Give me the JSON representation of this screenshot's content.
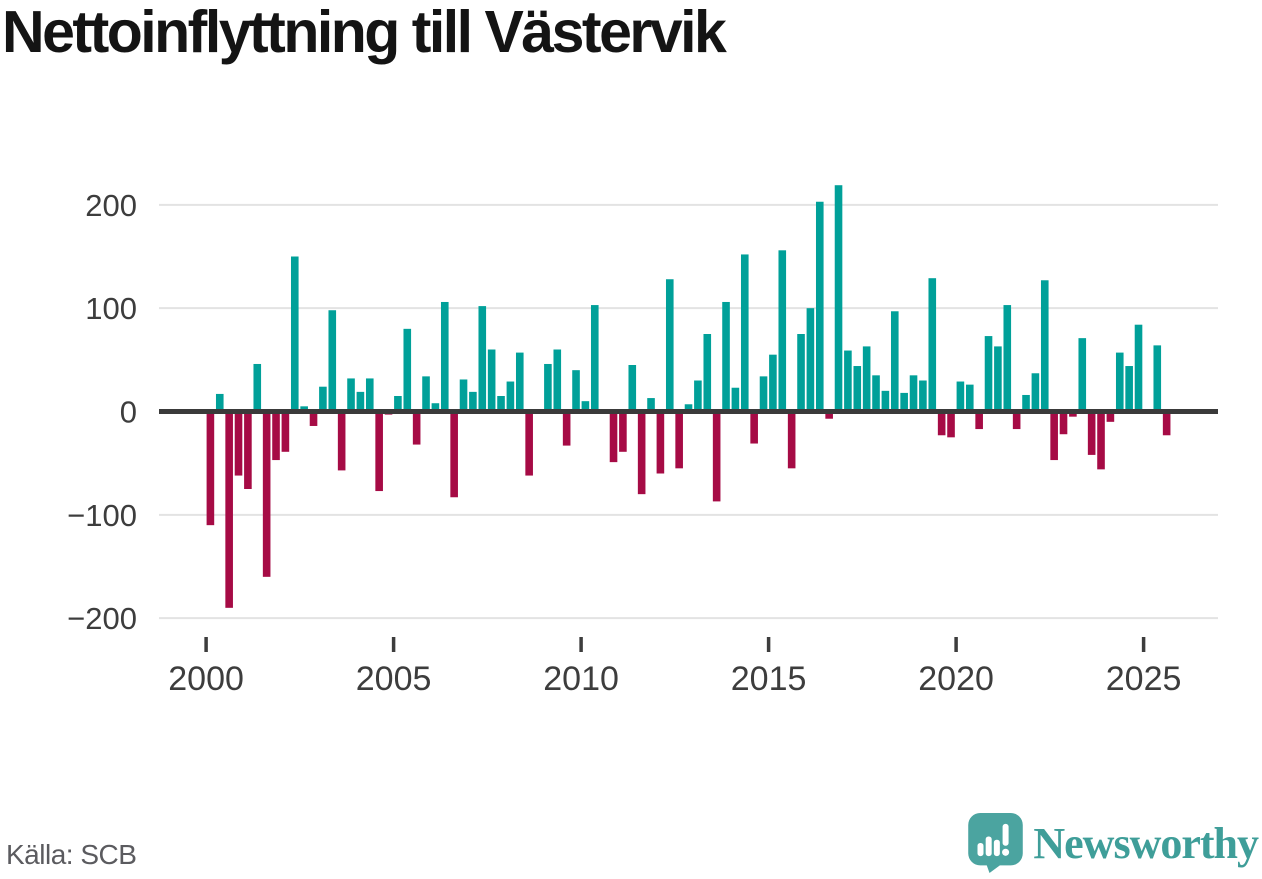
{
  "title": "Nettoinflyttning till Västervik",
  "source": "Källa: SCB",
  "logo": {
    "name": "Newsworthy",
    "icon": "bar-chart-pin-icon"
  },
  "colors": {
    "positive_bar": "#00a099",
    "negative_bar": "#a60b45",
    "gridline": "#e3e3e3",
    "zero_line": "#3a3a3a",
    "axis_text": "#3d3d3d",
    "source_text": "#5b5b5f",
    "logo_teal": "#4ba4a0",
    "logo_text_teal": "#3f9e99",
    "title_text": "#141414"
  },
  "chart_data": {
    "type": "bar",
    "title": "Nettoinflyttning till Västervik",
    "frequency": "quarterly",
    "start": "2000Q1",
    "end": "2025Q3",
    "xlabel": "",
    "ylabel": "",
    "grid": "horizontal",
    "legend": "none",
    "ylim": [
      -220,
      235
    ],
    "yticks": [
      -200,
      -100,
      0,
      100,
      200
    ],
    "xticks": [
      2000,
      2005,
      2010,
      2015,
      2020,
      2025
    ],
    "values": [
      -110,
      17,
      -190,
      -62,
      -75,
      46,
      -160,
      -47,
      -39,
      150,
      5,
      -14,
      24,
      98,
      -57,
      32,
      19,
      32,
      -77,
      -3,
      15,
      80,
      -32,
      34,
      8,
      106,
      -83,
      31,
      19,
      102,
      60,
      15,
      29,
      57,
      -62,
      0,
      46,
      60,
      -33,
      40,
      10,
      103,
      0,
      -49,
      -39,
      45,
      -80,
      13,
      -60,
      128,
      -55,
      7,
      30,
      75,
      -87,
      106,
      23,
      152,
      -31,
      34,
      55,
      156,
      -55,
      75,
      100,
      203,
      -7,
      219,
      59,
      44,
      63,
      35,
      20,
      97,
      18,
      35,
      30,
      129,
      -23,
      -25,
      29,
      26,
      -17,
      73,
      63,
      103,
      -17,
      16,
      37,
      127,
      -47,
      -22,
      -5,
      71,
      -42,
      -56,
      -10,
      57,
      44,
      84,
      0,
      64,
      -23
    ]
  }
}
